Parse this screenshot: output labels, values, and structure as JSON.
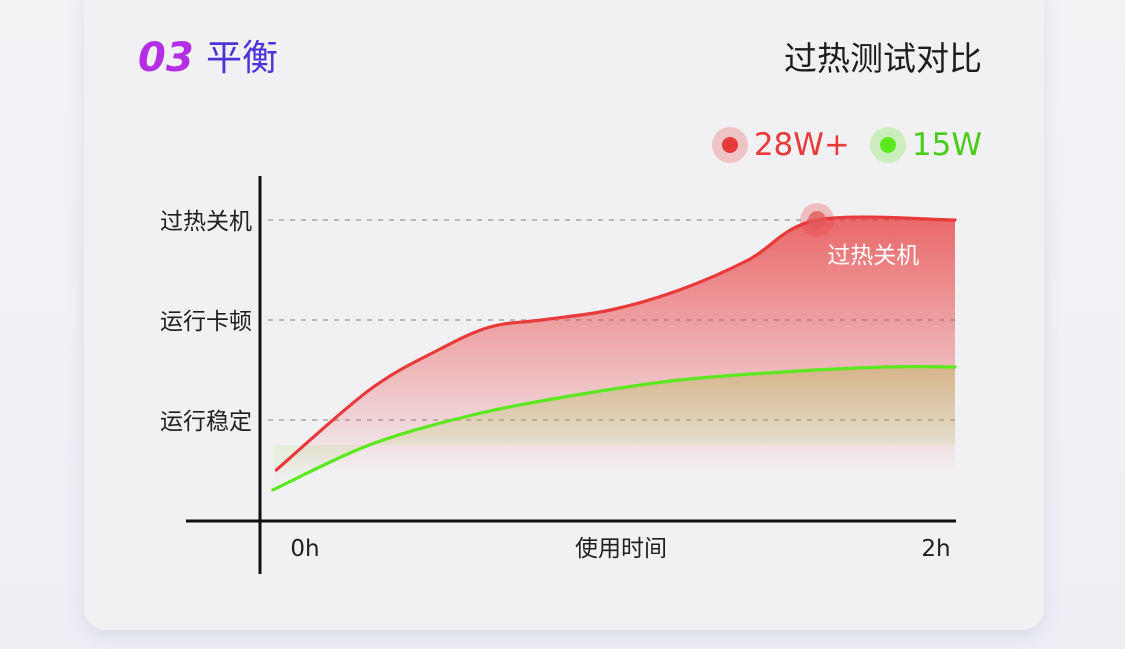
{
  "header": {
    "section_number": "03",
    "section_title": "平衡",
    "compare_title": "过热测试对比"
  },
  "colors": {
    "series_hot": "#e83a3a",
    "series_cool": "#5ce81f",
    "gridline": "#b8b8bc",
    "axis": "#111111"
  },
  "chart_data": {
    "type": "line",
    "xlabel": "使用时间",
    "x_tick_labels": [
      "0h",
      "2h"
    ],
    "xlim": [
      0,
      2
    ],
    "y_levels": [
      {
        "label": "运行稳定",
        "value": 1
      },
      {
        "label": "运行卡顿",
        "value": 2
      },
      {
        "label": "过热关机",
        "value": 3
      }
    ],
    "ylim": [
      0,
      3
    ],
    "grid": true,
    "legend_position": "top-right",
    "series": [
      {
        "name": "28W+",
        "color": "#e83a3a",
        "area_fill": true,
        "points": [
          [
            0.03,
            0.5
          ],
          [
            0.3,
            1.3
          ],
          [
            0.5,
            1.7
          ],
          [
            0.65,
            1.93
          ],
          [
            0.8,
            2.0
          ],
          [
            1.0,
            2.1
          ],
          [
            1.2,
            2.3
          ],
          [
            1.4,
            2.6
          ],
          [
            1.6,
            3.0
          ],
          [
            2.0,
            3.0
          ]
        ]
      },
      {
        "name": "15W",
        "color": "#5ce81f",
        "area_fill": true,
        "points": [
          [
            0.02,
            0.3
          ],
          [
            0.3,
            0.75
          ],
          [
            0.6,
            1.05
          ],
          [
            0.9,
            1.25
          ],
          [
            1.2,
            1.4
          ],
          [
            1.5,
            1.48
          ],
          [
            1.8,
            1.53
          ],
          [
            2.0,
            1.53
          ]
        ]
      }
    ],
    "annotations": [
      {
        "text": "过热关机",
        "series": "28W+",
        "x": 1.6,
        "y": 3.0
      }
    ]
  }
}
